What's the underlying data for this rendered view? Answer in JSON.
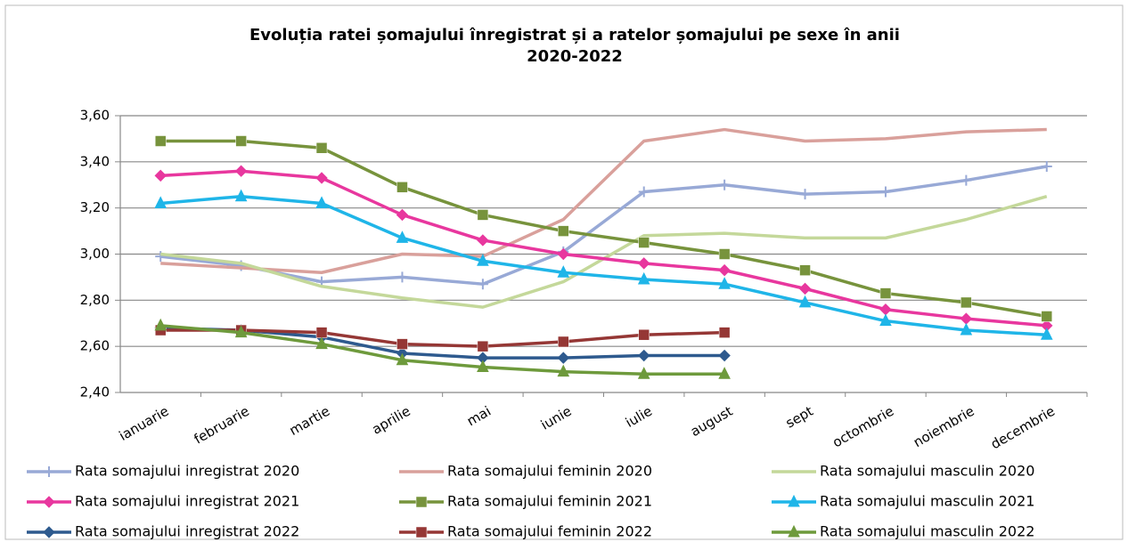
{
  "chart_data": {
    "type": "line",
    "title": [
      "Evoluția ratei șomajului înregistrat și a ratelor șomajului pe sexe în anii",
      "2020-2022"
    ],
    "categories": [
      "ianuarie",
      "februarie",
      "martie",
      "aprilie",
      "mai",
      "iunie",
      "iulie",
      "august",
      "sept",
      "octombrie",
      "noiembrie",
      "decembrie"
    ],
    "ylim": [
      2.4,
      3.6
    ],
    "yticks": [
      {
        "value": 2.4,
        "label": "2,40"
      },
      {
        "value": 2.6,
        "label": "2,60"
      },
      {
        "value": 2.8,
        "label": "2,80"
      },
      {
        "value": 3.0,
        "label": "3,00"
      },
      {
        "value": 3.2,
        "label": "3,20"
      },
      {
        "value": 3.4,
        "label": "3,40"
      },
      {
        "value": 3.6,
        "label": "3,60"
      }
    ],
    "grid": true,
    "legend": "bottom",
    "series": [
      {
        "name": "Rata somajului inregistrat 2020",
        "color": "#98a9d6",
        "marker": "plus",
        "values": [
          2.99,
          2.95,
          2.88,
          2.9,
          2.87,
          3.01,
          3.27,
          3.3,
          3.26,
          3.27,
          3.32,
          3.38
        ]
      },
      {
        "name": "Rata somajului feminin 2020",
        "color": "#d9a09b",
        "marker": "none",
        "values": [
          2.96,
          2.94,
          2.92,
          3.0,
          2.99,
          3.15,
          3.49,
          3.54,
          3.49,
          3.5,
          3.53,
          3.54
        ]
      },
      {
        "name": "Rata somajului masculin 2020",
        "color": "#c4d89a",
        "marker": "none",
        "values": [
          3.0,
          2.96,
          2.86,
          2.81,
          2.77,
          2.88,
          3.08,
          3.09,
          3.07,
          3.07,
          3.15,
          3.25
        ]
      },
      {
        "name": "Rata somajului inregistrat 2021",
        "color": "#e8379e",
        "marker": "diamond",
        "values": [
          3.34,
          3.36,
          3.33,
          3.17,
          3.06,
          3.0,
          2.96,
          2.93,
          2.85,
          2.76,
          2.72,
          2.69
        ]
      },
      {
        "name": "Rata somajului feminin 2021",
        "color": "#77933c",
        "marker": "square",
        "values": [
          3.49,
          3.49,
          3.46,
          3.29,
          3.17,
          3.1,
          3.05,
          3.0,
          2.93,
          2.83,
          2.79,
          2.73
        ]
      },
      {
        "name": "Rata somajului masculin 2021",
        "color": "#1fb5e8",
        "marker": "triangle",
        "values": [
          3.22,
          3.25,
          3.22,
          3.07,
          2.97,
          2.92,
          2.89,
          2.87,
          2.79,
          2.71,
          2.67,
          2.65
        ]
      },
      {
        "name": "Rata somajului inregistrat 2022",
        "color": "#2e5a8e",
        "marker": "diamond",
        "values": [
          2.68,
          2.67,
          2.64,
          2.57,
          2.55,
          2.55,
          2.56,
          2.56,
          null,
          null,
          null,
          null
        ]
      },
      {
        "name": "Rata somajului feminin 2022",
        "color": "#953735",
        "marker": "square",
        "values": [
          2.67,
          2.67,
          2.66,
          2.61,
          2.6,
          2.62,
          2.65,
          2.66,
          null,
          null,
          null,
          null
        ]
      },
      {
        "name": "Rata somajului masculin 2022",
        "color": "#6e9a3c",
        "marker": "triangle",
        "values": [
          2.69,
          2.66,
          2.61,
          2.54,
          2.51,
          2.49,
          2.48,
          2.48,
          null,
          null,
          null,
          null
        ]
      }
    ]
  }
}
